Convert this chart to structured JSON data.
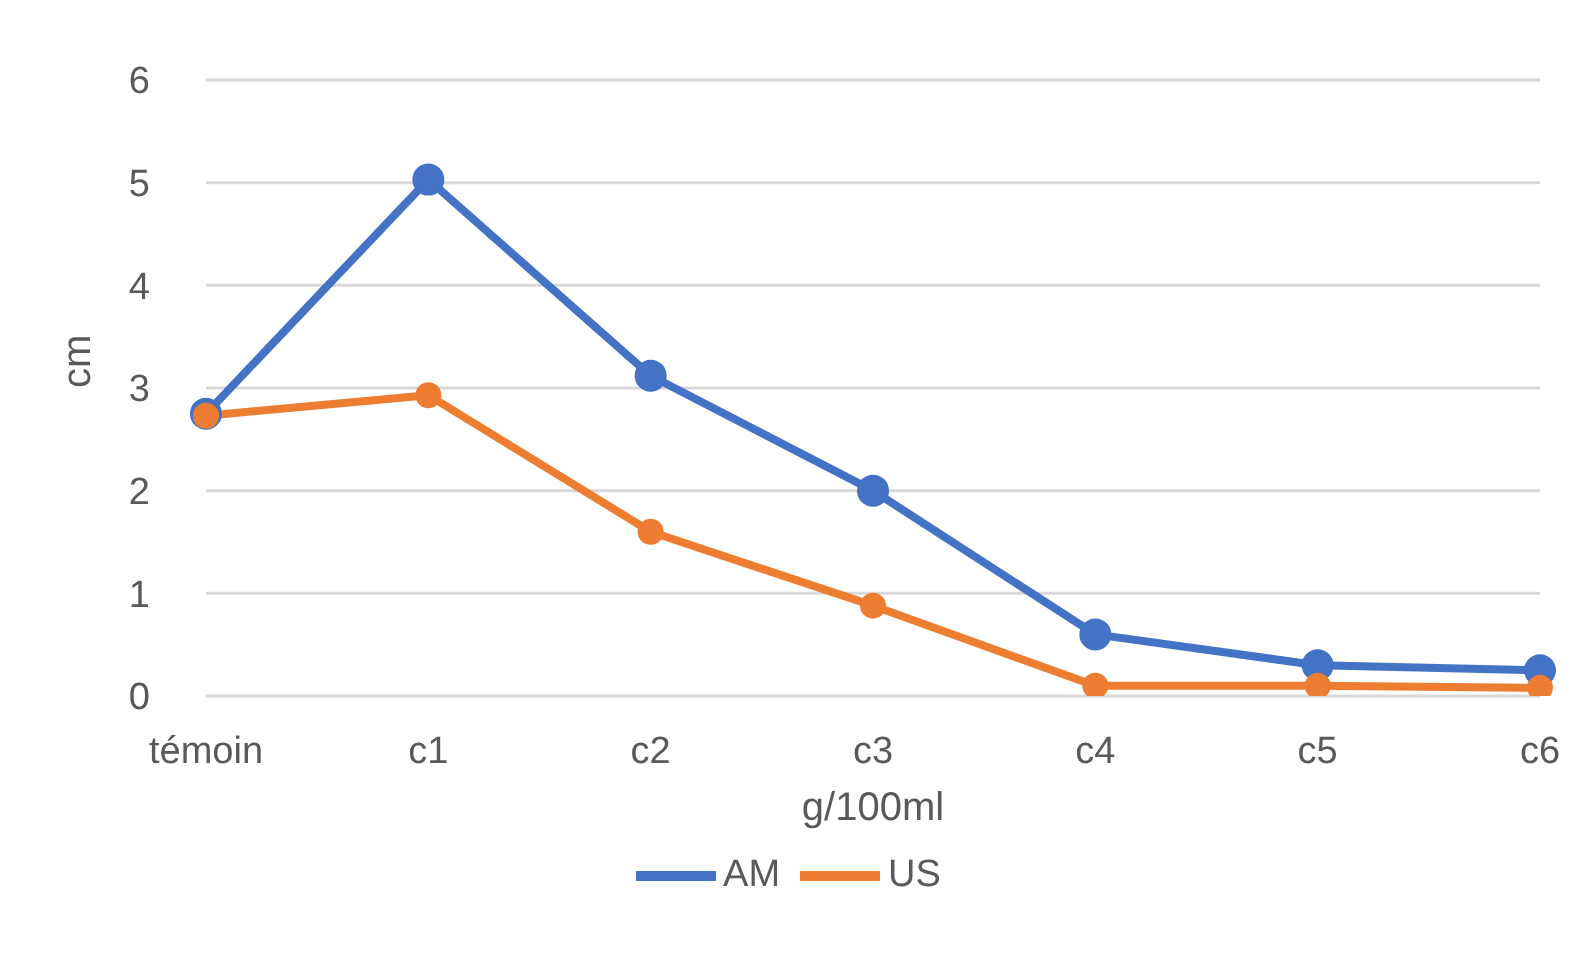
{
  "chart_data": {
    "type": "line",
    "xlabel": "g/100ml",
    "ylabel": "cm",
    "categories": [
      "témoin",
      "c1",
      "c2",
      "c3",
      "c4",
      "c5",
      "c6"
    ],
    "series": [
      {
        "name": "AM",
        "color": "#4472c4",
        "values": [
          2.75,
          5.03,
          3.12,
          2.0,
          0.6,
          0.3,
          0.25
        ]
      },
      {
        "name": "US",
        "color": "#ed7d31",
        "values": [
          2.73,
          2.93,
          1.6,
          0.88,
          0.1,
          0.1,
          0.08
        ]
      }
    ],
    "ylim": [
      0,
      6
    ],
    "yticks": [
      0,
      1,
      2,
      3,
      4,
      5,
      6
    ],
    "grid": "y",
    "legend": "bottom",
    "marker": "circle",
    "line_style": "solid"
  }
}
